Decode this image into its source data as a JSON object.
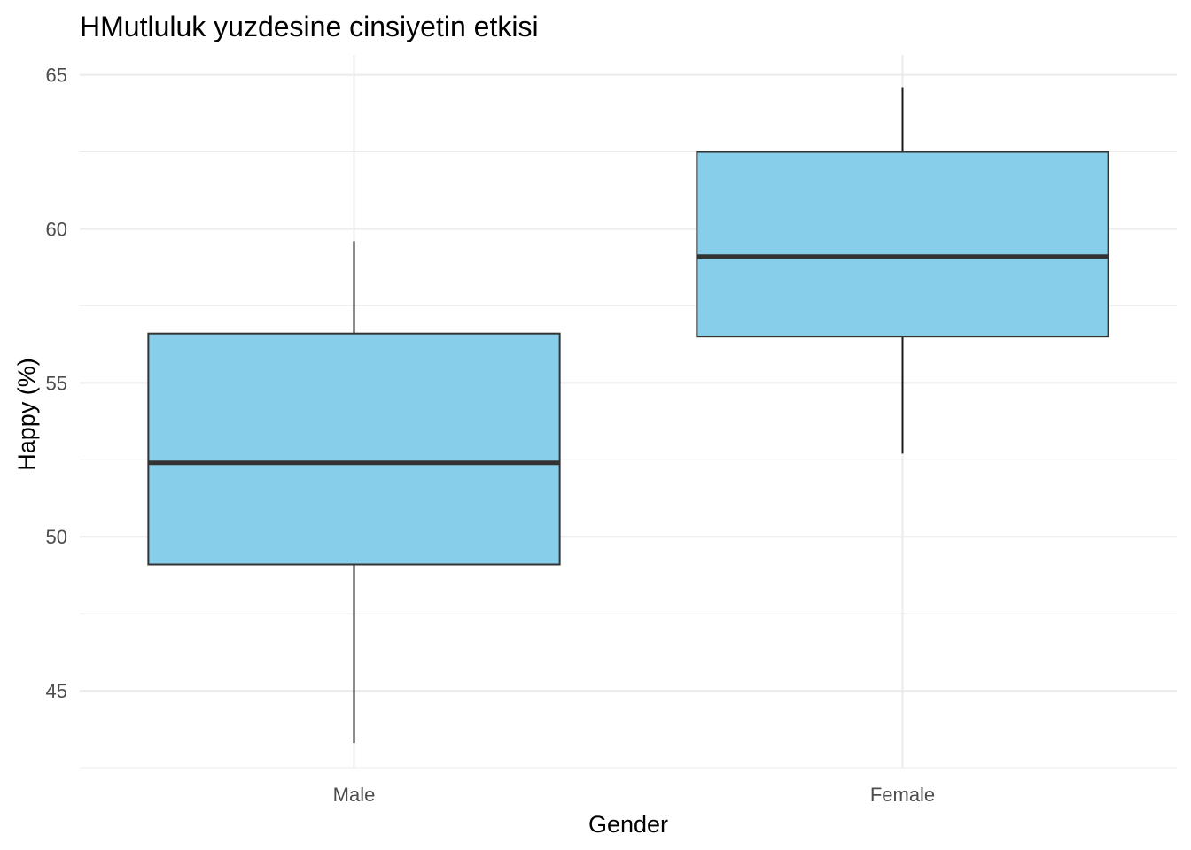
{
  "chart_data": {
    "type": "boxplot",
    "title": "HMutluluk yuzdesine cinsiyetin etkisi",
    "xlabel": "Gender",
    "ylabel": "Happy (%)",
    "categories": [
      "Male",
      "Female"
    ],
    "boxes": [
      {
        "category": "Male",
        "whisker_low": 43.3,
        "q1": 49.1,
        "median": 52.4,
        "q3": 56.6,
        "whisker_high": 59.6
      },
      {
        "category": "Female",
        "whisker_low": 52.7,
        "q1": 56.5,
        "median": 59.1,
        "q3": 62.5,
        "whisker_high": 64.6
      }
    ],
    "yticks": [
      45,
      50,
      55,
      60,
      65
    ],
    "ylim": [
      42.5,
      65.65
    ],
    "grid": true,
    "legend": "none",
    "colors": {
      "box_fill": "#87CEEB",
      "box_stroke": "#333333",
      "whisker": "#1a1a1a",
      "grid": "#ebebeb"
    }
  }
}
